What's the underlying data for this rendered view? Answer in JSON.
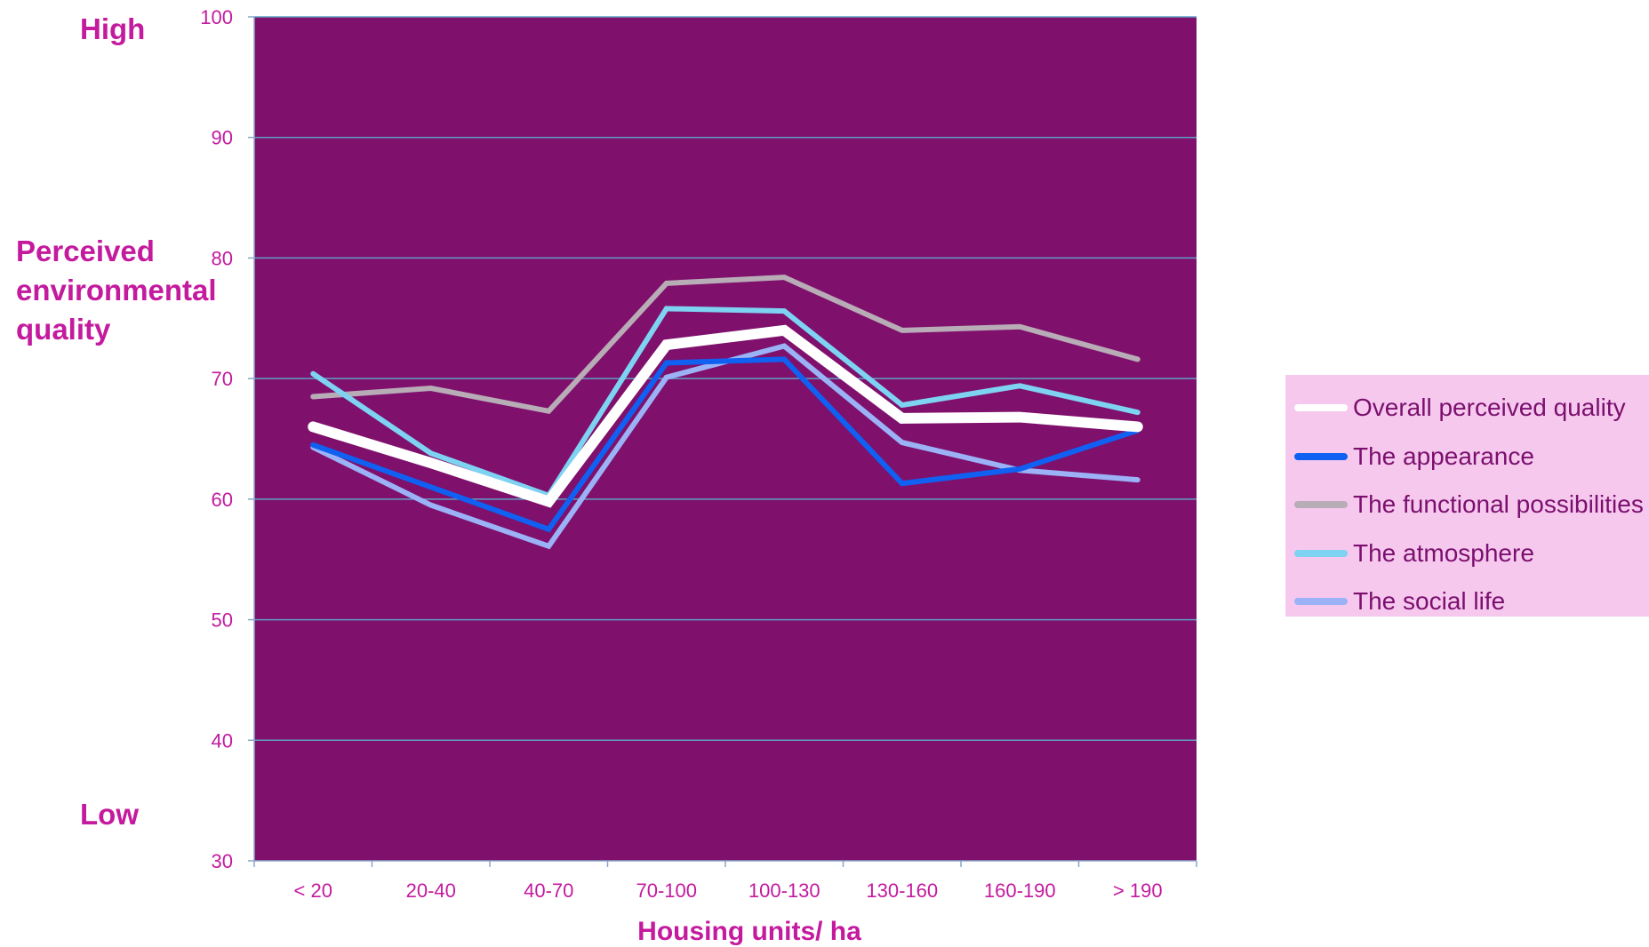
{
  "side_labels": {
    "high": "High",
    "low": "Low",
    "ylabel_lines": [
      "Perceived",
      "environmental",
      "quality"
    ]
  },
  "colors": {
    "plot_background": "#7f106c",
    "gridline": "#5f9ec4",
    "text_accent": "#c41a9e",
    "legend_background": "#f6c8ee",
    "legend_text": "#7b0f6e"
  },
  "chart_data": {
    "type": "line",
    "title": "",
    "xlabel": "Housing units/ ha",
    "ylabel": "Perceived environmental quality",
    "categories": [
      "< 20",
      "20-40",
      "40-70",
      "70-100",
      "100-130",
      "130-160",
      "160-190",
      "> 190"
    ],
    "ylim": [
      30,
      100
    ],
    "yticks": [
      30,
      40,
      50,
      60,
      70,
      80,
      90,
      100
    ],
    "grid": true,
    "legend_position": "right",
    "series": [
      {
        "name": "Overall perceived quality",
        "color": "#ffffff",
        "values": [
          66.0,
          63.0,
          59.8,
          72.8,
          74.0,
          66.7,
          66.8,
          66.0
        ]
      },
      {
        "name": "The appearance",
        "color": "#1060f2",
        "values": [
          64.5,
          61.0,
          57.5,
          71.3,
          71.6,
          61.3,
          62.5,
          65.7
        ]
      },
      {
        "name": "The functional possibilities",
        "color": "#b8acb6",
        "values": [
          68.5,
          69.2,
          67.3,
          77.9,
          78.4,
          74.0,
          74.3,
          71.6
        ]
      },
      {
        "name": "The atmosphere",
        "color": "#7ed2f2",
        "values": [
          70.4,
          63.8,
          60.3,
          75.8,
          75.6,
          67.8,
          69.4,
          67.2
        ]
      },
      {
        "name": "The social life",
        "color": "#9bb2f6",
        "values": [
          64.3,
          59.5,
          56.1,
          70.1,
          72.7,
          64.7,
          62.4,
          61.6
        ]
      }
    ]
  }
}
